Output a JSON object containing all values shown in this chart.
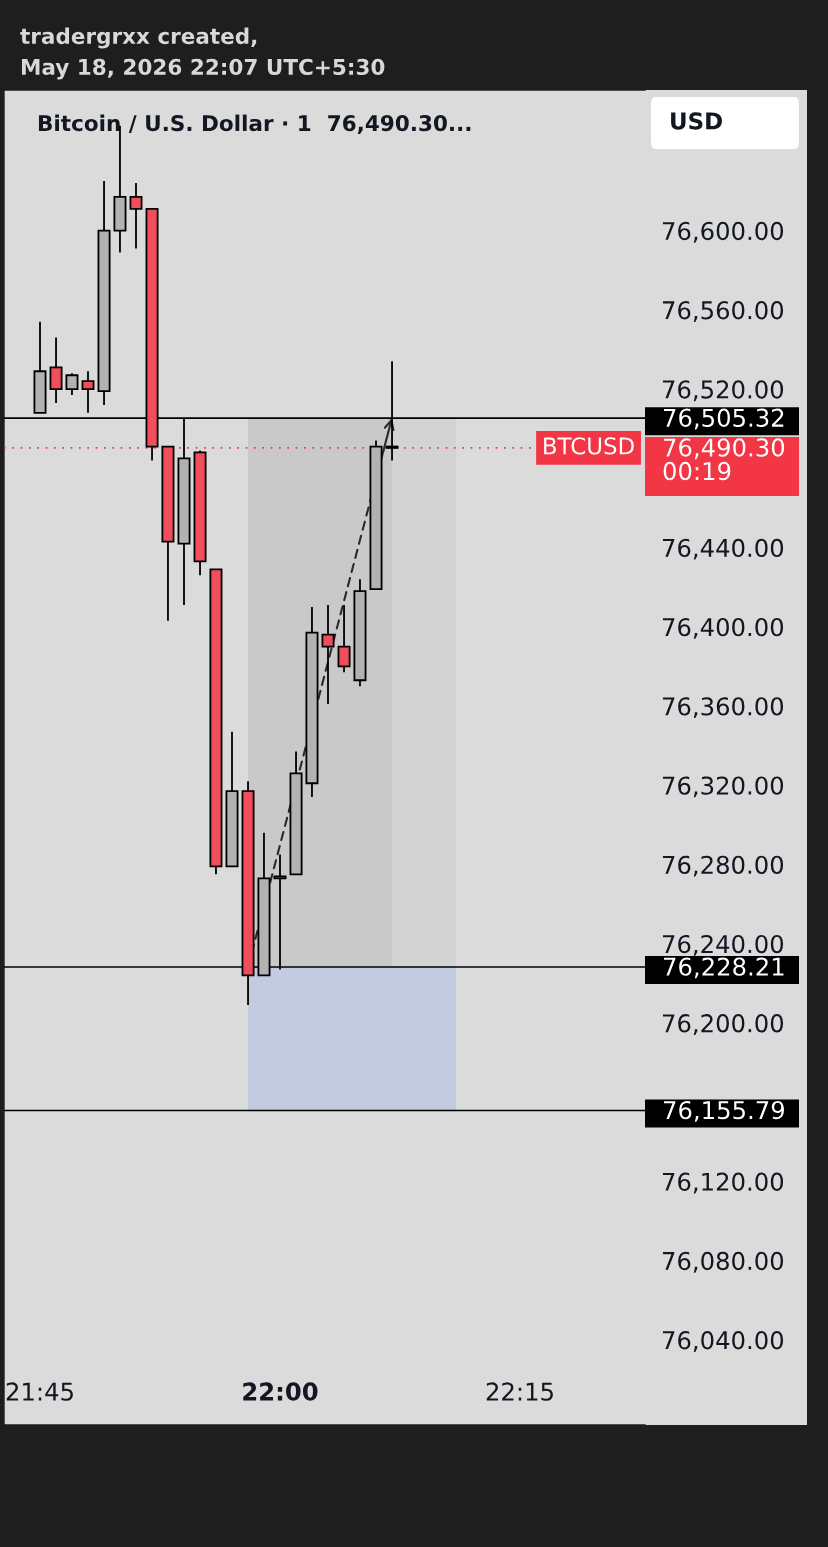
{
  "chart_data": {
    "type": "candlestick",
    "title": "Bitcoin / U.S. Dollar · 1  76,490.30...",
    "ylabel": "USD",
    "annotations": [
      "tradergrxx created,",
      "May 18, 2026 22:07 UTC+5:30",
      {
        "text": "BTCUSD",
        "x": 22.37,
        "y": 76490.3
      }
    ],
    "x": [
      21.75,
      21.7667,
      21.7833,
      21.8,
      21.8167,
      21.8333,
      21.85,
      21.8667,
      21.8833,
      21.9,
      21.9167,
      21.9333,
      21.95,
      21.9667,
      21.9833,
      22.0,
      22.0167,
      22.0333,
      22.05,
      22.0667,
      22.0833,
      22.1,
      22.1167
    ],
    "ohlc": [
      [
        76508,
        76554,
        76508,
        76529
      ],
      [
        76531,
        76546,
        76513,
        76520
      ],
      [
        76520,
        76528,
        76517,
        76527
      ],
      [
        76524,
        76529,
        76508,
        76520
      ],
      [
        76519,
        76625,
        76512,
        76600
      ],
      [
        76600,
        76653,
        76589,
        76617
      ],
      [
        76617,
        76624,
        76591,
        76611
      ],
      [
        76611,
        76611,
        76484,
        76491
      ],
      [
        76491,
        76491,
        76403,
        76443
      ],
      [
        76442,
        76505,
        76411,
        76485
      ],
      [
        76488,
        76489,
        76426,
        76433
      ],
      [
        76429,
        76429,
        76275,
        76279
      ],
      [
        76279,
        76347,
        76279,
        76317
      ],
      [
        76317,
        76322,
        76209,
        76224
      ],
      [
        76224,
        76296,
        76224,
        76273
      ],
      [
        76273,
        76285,
        76227,
        76274
      ],
      [
        76275,
        76337,
        76275,
        76326
      ],
      [
        76321,
        76410,
        76314,
        76397
      ],
      [
        76396,
        76411,
        76361,
        76390
      ],
      [
        76390,
        76411,
        76377,
        76380
      ],
      [
        76373,
        76424,
        76370,
        76418
      ],
      [
        76419,
        76494,
        76419,
        76491
      ],
      [
        76491,
        76534,
        76484,
        76490.3
      ]
    ],
    "colors": [
      "#b2b2b2",
      "#f04e5c",
      "#b2b2b2",
      "#f04e5c",
      "#b2b2b2",
      "#b2b2b2",
      "#f04e5c",
      "#f04e5c",
      "#f04e5c",
      "#b2b2b2",
      "#f04e5c",
      "#f04e5c",
      "#b2b2b2",
      "#f04e5c",
      "#b2b2b2",
      "#b2b2b2",
      "#b2b2b2",
      "#b2b2b2",
      "#f04e5c",
      "#f04e5c",
      "#b2b2b2",
      "#b2b2b2",
      "#f04e5c"
    ],
    "ref_lines": [
      {
        "axis": "y",
        "value": 76505.32,
        "label": "76,505.32",
        "color": "#000000",
        "line_style": "solid"
      },
      {
        "axis": "y",
        "value": 76490.3,
        "label": "76,490.30\n00:19",
        "color": "#f23645",
        "line_style": "dotted"
      },
      {
        "axis": "y",
        "value": 76228.21,
        "label": "76,228.21",
        "color": "#000000",
        "line_style": "solid"
      },
      {
        "axis": "y",
        "value": 76155.79,
        "label": "76,155.79",
        "color": "#000000",
        "line_style": "solid"
      }
    ],
    "xlim": [
      21.7125,
      22.3802
    ],
    "ylim": [
      75997,
      76671
    ],
    "xticks": [
      {
        "value": 21.75,
        "label": "21:45"
      },
      {
        "value": 22.0,
        "label": "22:00"
      },
      {
        "value": 22.25,
        "label": "22:15"
      }
    ],
    "yticks": [
      {
        "value": 76040,
        "label": "76,040.00"
      },
      {
        "value": 76080,
        "label": "76,080.00"
      },
      {
        "value": 76120,
        "label": "76,120.00"
      },
      {
        "value": 76200,
        "label": "76,200.00"
      },
      {
        "value": 76240,
        "label": "76,240.00"
      },
      {
        "value": 76280,
        "label": "76,280.00"
      },
      {
        "value": 76320,
        "label": "76,320.00"
      },
      {
        "value": 76360,
        "label": "76,360.00"
      },
      {
        "value": 76400,
        "label": "76,400.00"
      },
      {
        "value": 76440,
        "label": "76,440.00"
      },
      {
        "value": 76520,
        "label": "76,520.00"
      },
      {
        "value": 76560,
        "label": "76,560.00"
      },
      {
        "value": 76600,
        "label": "76,600.00"
      }
    ]
  }
}
